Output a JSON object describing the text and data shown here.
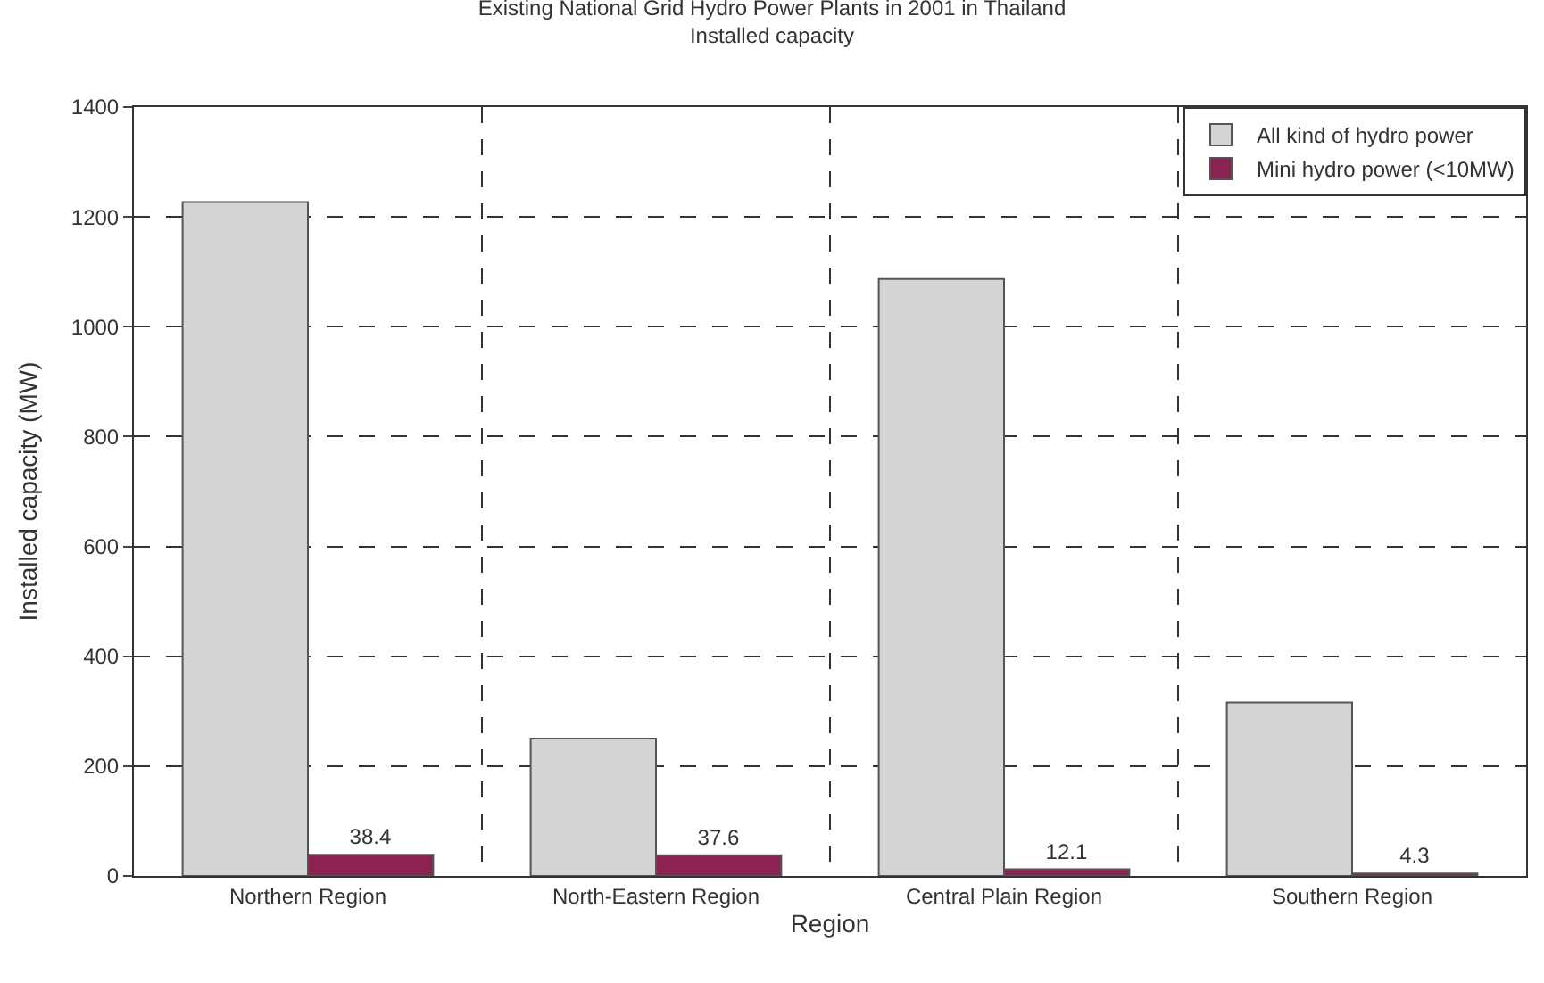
{
  "chart_data": {
    "type": "bar",
    "title": "Existing National Grid Hydro Power Plants in 2001 in Thailand",
    "subtitle": "Installed capacity",
    "xlabel": "Region",
    "ylabel": "Installed capacity (MW)",
    "categories": [
      "Northern Region",
      "North-Eastern Region",
      "Central Plain Region",
      "Southern Region"
    ],
    "series": [
      {
        "name": "All kind of hydro power",
        "color": "#d4d4d4",
        "values": [
          1227,
          250,
          1087,
          316
        ]
      },
      {
        "name": "Mini hydro power (<10MW)",
        "color": "#8b2252",
        "values": [
          38.4,
          37.6,
          12.1,
          4.3
        ],
        "value_labels": [
          "38.4",
          "37.6",
          "12.1",
          "4.3"
        ]
      }
    ],
    "ylim": [
      0,
      1400
    ],
    "yticks": [
      0,
      200,
      400,
      600,
      800,
      1000,
      1200,
      1400
    ],
    "grid": true,
    "legend": "top right"
  }
}
